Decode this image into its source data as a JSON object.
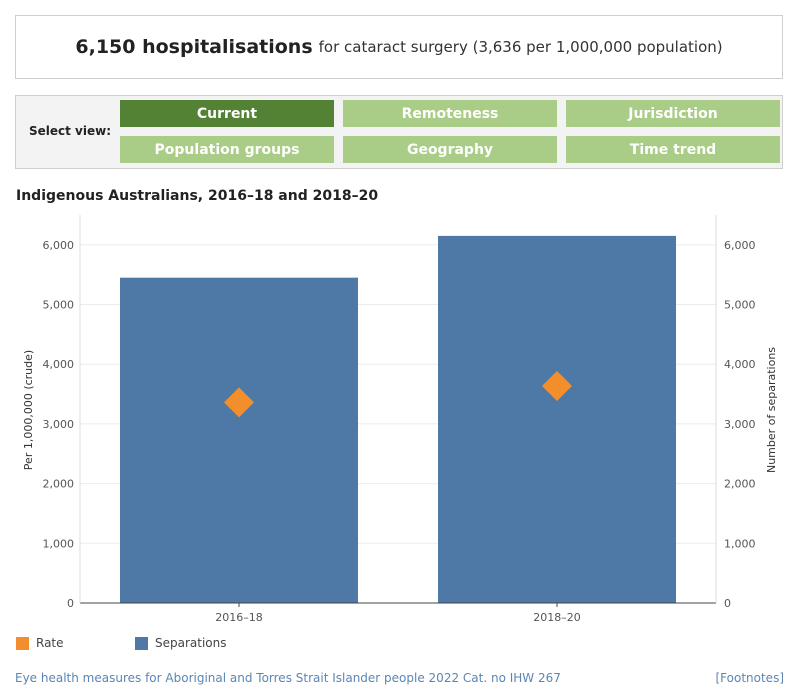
{
  "headline": {
    "count": "6,150 hospitalisations",
    "rest": "for cataract surgery (3,636 per 1,000,000 population)"
  },
  "selector": {
    "label": "Select view:",
    "buttons": [
      "Current",
      "Remoteness",
      "Jurisdiction",
      "Population groups",
      "Geography",
      "Time trend"
    ],
    "active": "Current"
  },
  "colors": {
    "active_button": "#548235",
    "inactive_button": "#a9cc86",
    "separations": "#4e79a7",
    "rate": "#f28e2b"
  },
  "chart_data": {
    "type": "bar",
    "title": "Indigenous Australians, 2016–18 and 2018–20",
    "categories": [
      "2016–18",
      "2018–20"
    ],
    "series": [
      {
        "name": "Separations",
        "kind": "bar",
        "axis": "right",
        "values": [
          5450,
          6150
        ]
      },
      {
        "name": "Rate",
        "kind": "diamond",
        "axis": "left",
        "values": [
          3360,
          3636
        ]
      }
    ],
    "ylabel_left": "Per 1,000,000 (crude)",
    "ylabel_right": "Number of separations",
    "ylim": [
      0,
      6500
    ],
    "yticks": [
      0,
      1000,
      2000,
      3000,
      4000,
      5000,
      6000
    ],
    "ytick_labels": [
      "0",
      "1,000",
      "2,000",
      "3,000",
      "4,000",
      "5,000",
      "6,000"
    ],
    "grid": true,
    "legend": "bottom-left"
  },
  "legend": {
    "rate": "Rate",
    "separations": "Separations"
  },
  "footer": {
    "source": "Eye health measures for Aboriginal and Torres Strait Islander people 2022 Cat. no IHW 267",
    "footnotes": "[Footnotes]"
  }
}
